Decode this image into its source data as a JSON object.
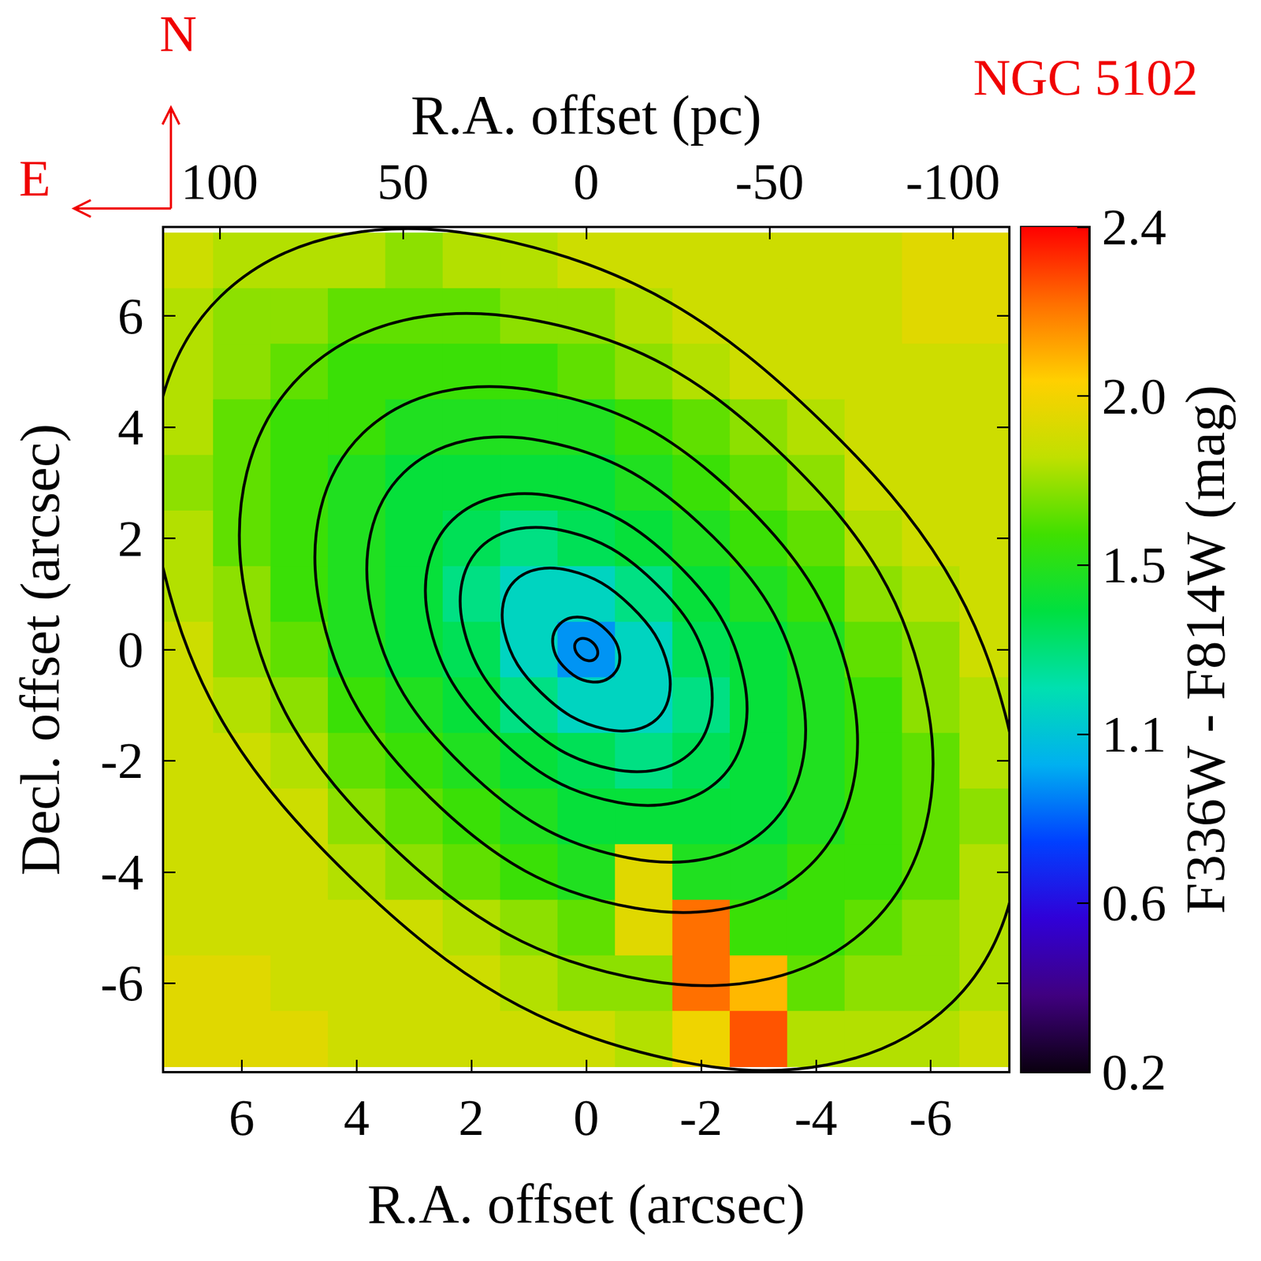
{
  "chart_data": {
    "type": "heatmap",
    "title": "NGC 5102",
    "compass": {
      "north": "N",
      "east": "E"
    },
    "xlabel": "R.A. offset (arcsec)",
    "ylabel": "Decl. offset (arcsec)",
    "x2label": "R.A. offset (pc)",
    "xlim": [
      7.37,
      -7.37
    ],
    "xticks": [
      6,
      4,
      2,
      0,
      -2,
      -4,
      -6
    ],
    "ylim": [
      -7.6,
      7.6
    ],
    "yticks": [
      -6,
      -4,
      -2,
      0,
      2,
      4,
      6
    ],
    "x2lim": [
      115.4,
      -115.4
    ],
    "x2ticks": [
      100,
      50,
      0,
      -50,
      -100
    ],
    "grid": false,
    "colorbar": {
      "label": "F336W - F814W (mag)",
      "range": [
        0.2,
        2.4
      ],
      "ticks": [
        0.2,
        {
          "value": 0.64,
          "label": "0.6"
        },
        {
          "value": 1.08,
          "label": "1.1"
        },
        {
          "value": 1.52,
          "label": "1.5"
        },
        {
          "value": 1.96,
          "label": "2.0"
        },
        2.4
      ]
    },
    "cells": {
      "x": [
        7,
        6,
        5,
        4,
        3,
        2,
        1,
        0,
        -1,
        -2,
        -3,
        -4,
        -5,
        -6,
        -7
      ],
      "y": [
        7,
        6,
        5,
        4,
        3,
        2,
        1,
        0,
        -1,
        -2,
        -3,
        -4,
        -5,
        -6,
        -7
      ],
      "values": [
        [
          1.84,
          1.78,
          1.78,
          1.78,
          1.72,
          1.78,
          1.78,
          1.84,
          1.84,
          1.84,
          1.84,
          1.84,
          1.84,
          1.9,
          1.9
        ],
        [
          1.78,
          1.72,
          1.72,
          1.65,
          1.65,
          1.65,
          1.72,
          1.72,
          1.78,
          1.84,
          1.84,
          1.84,
          1.84,
          1.9,
          1.9
        ],
        [
          1.78,
          1.72,
          1.65,
          1.58,
          1.58,
          1.58,
          1.58,
          1.65,
          1.72,
          1.78,
          1.84,
          1.84,
          1.84,
          1.84,
          1.84
        ],
        [
          1.78,
          1.65,
          1.58,
          1.58,
          1.5,
          1.5,
          1.5,
          1.5,
          1.58,
          1.65,
          1.72,
          1.78,
          1.84,
          1.84,
          1.84
        ],
        [
          1.72,
          1.65,
          1.58,
          1.5,
          1.42,
          1.42,
          1.42,
          1.42,
          1.5,
          1.58,
          1.65,
          1.72,
          1.84,
          1.84,
          1.84
        ],
        [
          1.78,
          1.65,
          1.58,
          1.5,
          1.42,
          1.36,
          1.28,
          1.36,
          1.42,
          1.5,
          1.58,
          1.65,
          1.78,
          1.84,
          1.84
        ],
        [
          1.78,
          1.72,
          1.58,
          1.5,
          1.42,
          1.28,
          1.15,
          1.15,
          1.28,
          1.42,
          1.5,
          1.58,
          1.72,
          1.78,
          1.84
        ],
        [
          1.84,
          1.72,
          1.65,
          1.5,
          1.42,
          1.36,
          1.15,
          0.95,
          1.15,
          1.36,
          1.42,
          1.5,
          1.65,
          1.72,
          1.84
        ],
        [
          1.84,
          1.78,
          1.72,
          1.58,
          1.5,
          1.42,
          1.28,
          1.15,
          1.15,
          1.28,
          1.42,
          1.5,
          1.58,
          1.72,
          1.78
        ],
        [
          1.84,
          1.84,
          1.78,
          1.65,
          1.58,
          1.5,
          1.42,
          1.36,
          1.28,
          1.36,
          1.42,
          1.5,
          1.58,
          1.65,
          1.78
        ],
        [
          1.84,
          1.84,
          1.84,
          1.72,
          1.65,
          1.58,
          1.5,
          1.42,
          1.42,
          1.42,
          1.42,
          1.5,
          1.58,
          1.65,
          1.72
        ],
        [
          1.84,
          1.84,
          1.84,
          1.78,
          1.72,
          1.65,
          1.58,
          1.5,
          1.9,
          1.5,
          1.5,
          1.58,
          1.58,
          1.65,
          1.78
        ],
        [
          1.84,
          1.84,
          1.84,
          1.84,
          1.84,
          1.78,
          1.72,
          1.65,
          1.9,
          2.2,
          1.58,
          1.58,
          1.65,
          1.72,
          1.78
        ],
        [
          1.9,
          1.9,
          1.84,
          1.84,
          1.84,
          1.84,
          1.78,
          1.72,
          1.72,
          2.2,
          2.05,
          1.65,
          1.72,
          1.72,
          1.78
        ],
        [
          1.9,
          1.9,
          1.9,
          1.84,
          1.84,
          1.84,
          1.84,
          1.84,
          1.78,
          1.95,
          2.25,
          1.78,
          1.78,
          1.78,
          1.84
        ]
      ]
    },
    "contours": [
      [
        [
          0.16,
          0.16
        ],
        [
          0.2,
          0.03
        ],
        [
          0.12,
          -0.12
        ],
        [
          -0.03,
          -0.2
        ],
        [
          -0.16,
          -0.16
        ],
        [
          -0.2,
          -0.03
        ],
        [
          -0.12,
          0.12
        ],
        [
          0.03,
          0.2
        ]
      ],
      [
        [
          0.46,
          0.46
        ],
        [
          0.58,
          0.08
        ],
        [
          0.35,
          -0.35
        ],
        [
          -0.08,
          -0.58
        ],
        [
          -0.46,
          -0.46
        ],
        [
          -0.58,
          -0.08
        ],
        [
          -0.35,
          0.35
        ],
        [
          0.08,
          0.58
        ]
      ],
      [
        [
          1.24,
          1.24
        ],
        [
          1.43,
          0.33
        ],
        [
          0.78,
          -0.78
        ],
        [
          -0.33,
          -1.43
        ],
        [
          -1.24,
          -1.24
        ],
        [
          -1.43,
          -0.33
        ],
        [
          -0.78,
          0.78
        ],
        [
          0.33,
          1.43
        ]
      ],
      [
        [
          1.84,
          1.84
        ],
        [
          2.15,
          0.45
        ],
        [
          1.2,
          -1.2
        ],
        [
          -0.45,
          -2.15
        ],
        [
          -1.84,
          -1.84
        ],
        [
          -2.15,
          -0.45
        ],
        [
          -1.2,
          1.2
        ],
        [
          0.45,
          2.15
        ]
      ],
      [
        [
          2.33,
          2.33
        ],
        [
          2.75,
          0.55
        ],
        [
          1.56,
          -1.56
        ],
        [
          -0.55,
          -2.75
        ],
        [
          -2.33,
          -2.33
        ],
        [
          -2.75,
          -0.55
        ],
        [
          -1.56,
          1.56
        ],
        [
          0.55,
          2.75
        ]
      ],
      [
        [
          3.18,
          3.18
        ],
        [
          3.75,
          0.75
        ],
        [
          2.12,
          -2.12
        ],
        [
          -0.75,
          -3.75
        ],
        [
          -3.18,
          -3.18
        ],
        [
          -3.75,
          -0.75
        ],
        [
          -2.12,
          2.12
        ],
        [
          0.75,
          3.75
        ]
      ],
      [
        [
          3.89,
          3.89
        ],
        [
          4.65,
          0.85
        ],
        [
          2.69,
          -2.69
        ],
        [
          -0.85,
          -4.65
        ],
        [
          -3.89,
          -3.89
        ],
        [
          -4.65,
          -0.85
        ],
        [
          -2.69,
          2.69
        ],
        [
          0.85,
          4.65
        ]
      ],
      [
        [
          4.95,
          4.95
        ],
        [
          5.95,
          1.05
        ],
        [
          3.46,
          -3.46
        ],
        [
          -1.05,
          -5.95
        ],
        [
          -4.95,
          -4.95
        ],
        [
          -5.95,
          -1.05
        ],
        [
          -3.46,
          3.46
        ],
        [
          1.05,
          5.95
        ]
      ],
      [
        [
          6.36,
          6.36
        ],
        [
          7.4,
          1.6
        ],
        [
          4.1,
          -4.1
        ],
        [
          -1.6,
          -7.4
        ],
        [
          -6.36,
          -6.36
        ],
        [
          -7.4,
          -1.6
        ],
        [
          -4.1,
          4.1
        ],
        [
          1.6,
          7.4
        ]
      ]
    ]
  }
}
